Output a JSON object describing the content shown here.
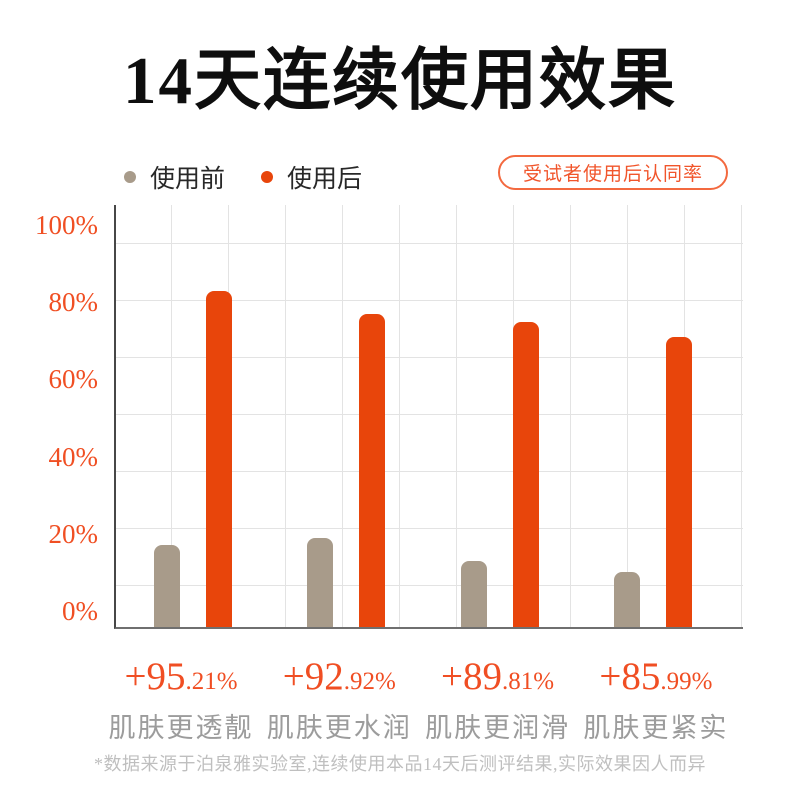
{
  "title": "14天连续使用效果",
  "legend": [
    {
      "label": "使用前",
      "color": "#a89b8a"
    },
    {
      "label": "使用后",
      "color": "#e8450b"
    }
  ],
  "badge": "受试者使用后认同率",
  "chart_data": {
    "type": "bar",
    "title": "14天连续使用效果",
    "categories": [
      "肌肤更透靓",
      "肌肤更水润",
      "肌肤更润滑",
      "肌肤更紧实"
    ],
    "series": [
      {
        "name": "使用前",
        "color": "#a89b8a",
        "values": [
          17,
          19,
          13,
          10
        ]
      },
      {
        "name": "使用后",
        "color": "#e8450b",
        "values": [
          83,
          77,
          75,
          71
        ]
      }
    ],
    "annotations": [
      "+95.21%",
      "+92.92%",
      "+89.81%",
      "+85.99%"
    ],
    "yticks": [
      "100%",
      "80%",
      "60%",
      "40%",
      "20%",
      "0%"
    ],
    "ylim": [
      0,
      100
    ],
    "grid": true,
    "legend_position": "top-left"
  },
  "groups": [
    {
      "value_main": "+95",
      "value_sub": ".21%",
      "label": "肌肤更透靓"
    },
    {
      "value_main": "+92",
      "value_sub": ".92%",
      "label": "肌肤更水润"
    },
    {
      "value_main": "+89",
      "value_sub": ".81%",
      "label": "肌肤更润滑"
    },
    {
      "value_main": "+85",
      "value_sub": ".99%",
      "label": "肌肤更紧实"
    }
  ],
  "footnote": "*数据来源于泊泉雅实验室,连续使用本品14天后测评结果,实际效果因人而异",
  "colors": {
    "bar_before": "#a89b8a",
    "bar_after": "#e8450b",
    "accent_text": "#f04f23",
    "badge_border": "#f3693f",
    "gridline": "#e3e3e3",
    "axis": "#474747",
    "category_text": "#9c9c9c",
    "footnote_text": "#bfbfbf"
  }
}
